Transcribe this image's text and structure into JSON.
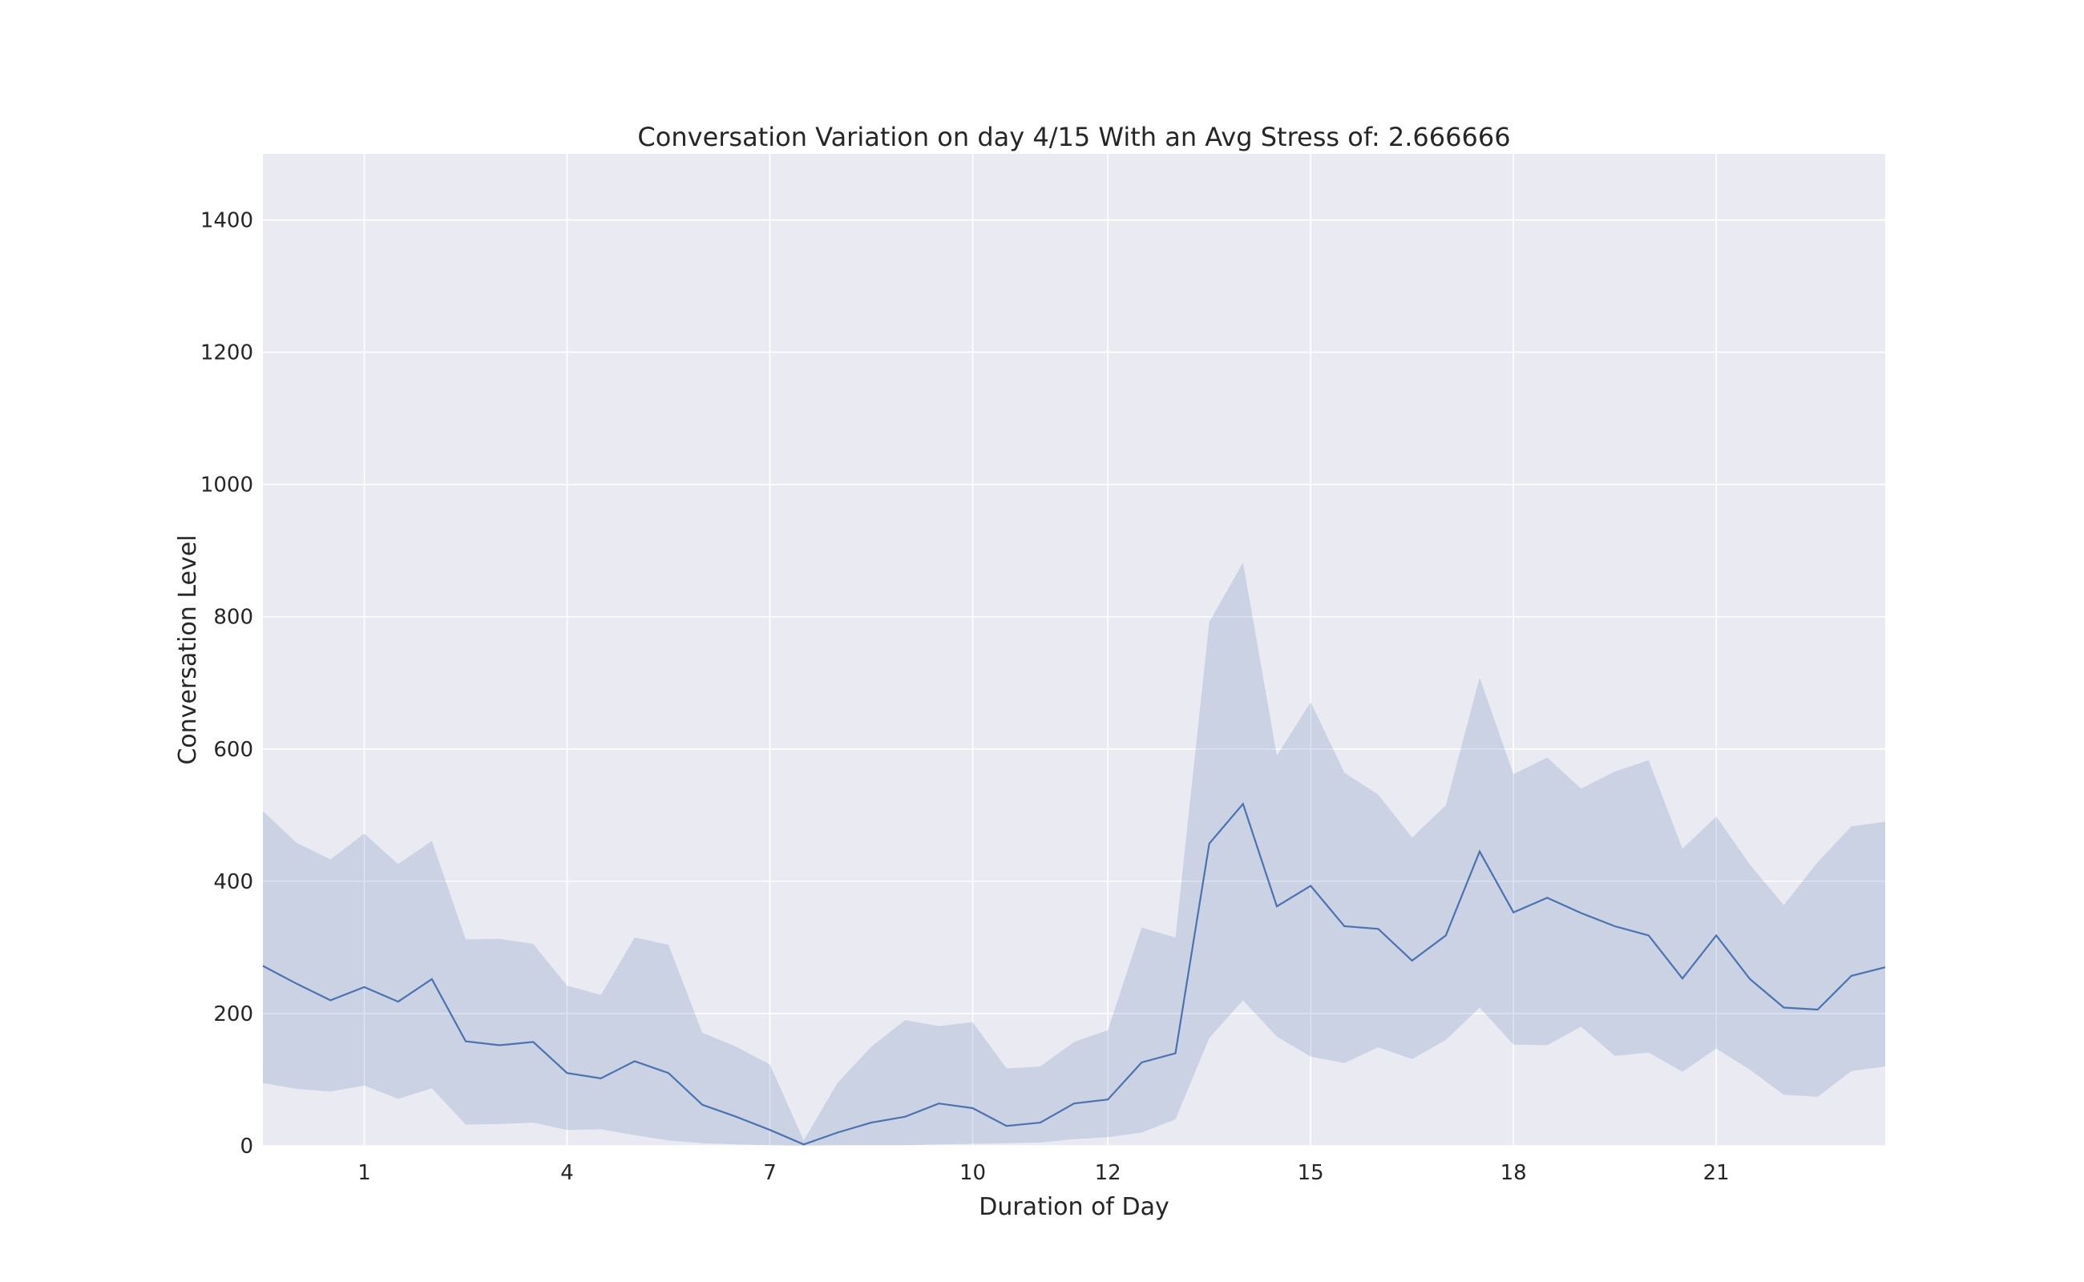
{
  "chart_data": {
    "type": "line",
    "title": "Conversation Variation on day 4/15 With an Avg Stress of: 2.666666",
    "xlabel": "Duration of Day",
    "ylabel": "Conversation Level",
    "xlim": [
      -0.5,
      23.5
    ],
    "ylim": [
      0,
      1500
    ],
    "xticks": [
      1,
      4,
      7,
      10,
      12,
      15,
      18,
      21
    ],
    "yticks": [
      0,
      200,
      400,
      600,
      800,
      1000,
      1200,
      1400
    ],
    "grid": true,
    "background": "#eaeaf2",
    "line_color": "#4c72b0",
    "band_color": "#4c72b0",
    "series": [
      {
        "x": [
          -0.5,
          0,
          0.5,
          1,
          1.5,
          2,
          2.5,
          3,
          3.5,
          4,
          4.5,
          5,
          5.5,
          6,
          6.5,
          7,
          7.5,
          8,
          8.5,
          9,
          9.5,
          10,
          10.5,
          11,
          11.5,
          12,
          12.5,
          13,
          13.5,
          14,
          14.5,
          15,
          15.5,
          16,
          16.5,
          17,
          17.5,
          18,
          18.5,
          19,
          19.5,
          20,
          20.5,
          21,
          21.5,
          22,
          22.5,
          23,
          23.5
        ],
        "values": [
          272,
          245,
          220,
          240,
          218,
          252,
          158,
          152,
          157,
          110,
          102,
          128,
          110,
          62,
          44,
          24,
          2,
          20,
          35,
          44,
          64,
          57,
          30,
          35,
          64,
          70,
          126,
          140,
          457,
          517,
          362,
          393,
          332,
          328,
          280,
          318,
          445,
          353,
          375,
          352,
          332,
          318,
          253,
          318,
          252,
          209,
          206,
          257,
          270
        ],
        "lower": [
          95,
          86,
          82,
          91,
          71,
          87,
          32,
          33,
          35,
          24,
          25,
          16,
          8,
          4,
          2,
          1,
          0,
          1,
          1,
          1,
          2,
          3,
          4,
          5,
          10,
          13,
          20,
          40,
          163,
          220,
          165,
          135,
          125,
          149,
          131,
          160,
          209,
          153,
          152,
          180,
          136,
          141,
          112,
          147,
          115,
          77,
          74,
          113,
          120
        ],
        "upper": [
          506,
          458,
          433,
          472,
          426,
          461,
          312,
          313,
          305,
          242,
          228,
          315,
          304,
          171,
          150,
          123,
          8,
          95,
          150,
          190,
          181,
          187,
          117,
          120,
          157,
          175,
          330,
          315,
          792,
          882,
          590,
          671,
          564,
          531,
          466,
          515,
          708,
          562,
          587,
          540,
          566,
          583,
          449,
          498,
          425,
          364,
          429,
          483,
          490
        ]
      }
    ]
  }
}
